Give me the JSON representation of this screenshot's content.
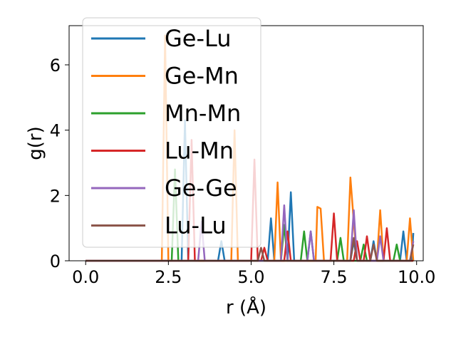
{
  "chart_data": {
    "type": "line",
    "xlabel": "r (Å)",
    "ylabel": "g(r)",
    "xlim": [
      -0.5,
      10.2
    ],
    "ylim": [
      0,
      7.2
    ],
    "xticks": [
      0.0,
      2.5,
      5.0,
      7.5,
      10.0
    ],
    "xtick_labels": [
      "0.0",
      "2.5",
      "5.0",
      "7.5",
      "10.0"
    ],
    "yticks": [
      0,
      2,
      4,
      6
    ],
    "ytick_labels": [
      "0",
      "2",
      "4",
      "6"
    ],
    "grid": false,
    "legend_position": "upper-left",
    "series": [
      {
        "name": "Ge-Lu",
        "color": "#1f77b4",
        "points": [
          [
            0,
            0
          ],
          [
            2.9,
            0
          ],
          [
            3.0,
            4.3
          ],
          [
            3.1,
            0
          ],
          [
            4.0,
            0
          ],
          [
            4.1,
            0.6
          ],
          [
            4.2,
            0
          ],
          [
            5.5,
            0
          ],
          [
            5.6,
            1.3
          ],
          [
            5.7,
            0
          ],
          [
            6.1,
            0
          ],
          [
            6.2,
            2.1
          ],
          [
            6.3,
            0
          ],
          [
            6.7,
            0
          ],
          [
            6.8,
            0.9
          ],
          [
            6.9,
            0
          ],
          [
            8.0,
            0
          ],
          [
            8.1,
            0.6
          ],
          [
            8.2,
            0
          ],
          [
            8.6,
            0
          ],
          [
            8.7,
            0.6
          ],
          [
            8.8,
            0
          ],
          [
            9.5,
            0
          ],
          [
            9.6,
            0.9
          ],
          [
            9.7,
            0
          ],
          [
            9.85,
            0
          ],
          [
            9.9,
            0.85
          ]
        ]
      },
      {
        "name": "Ge-Mn",
        "color": "#ff7f0e",
        "points": [
          [
            0,
            0
          ],
          [
            2.3,
            0
          ],
          [
            2.4,
            6.9
          ],
          [
            2.5,
            0
          ],
          [
            4.4,
            0
          ],
          [
            4.5,
            4.0
          ],
          [
            4.6,
            0
          ],
          [
            5.7,
            0
          ],
          [
            5.8,
            2.4
          ],
          [
            5.9,
            0
          ],
          [
            6.95,
            0
          ],
          [
            7.0,
            1.65
          ],
          [
            7.1,
            1.6
          ],
          [
            7.2,
            0
          ],
          [
            7.9,
            0
          ],
          [
            8.0,
            2.55
          ],
          [
            8.1,
            1.2
          ],
          [
            8.2,
            0
          ],
          [
            8.8,
            0
          ],
          [
            8.9,
            1.55
          ],
          [
            9.0,
            0
          ],
          [
            9.7,
            0
          ],
          [
            9.8,
            1.3
          ],
          [
            9.9,
            0
          ]
        ]
      },
      {
        "name": "Mn-Mn",
        "color": "#2ca02c",
        "points": [
          [
            0,
            0
          ],
          [
            2.6,
            0
          ],
          [
            2.7,
            2.8
          ],
          [
            2.8,
            0
          ],
          [
            5.9,
            0
          ],
          [
            6.0,
            1.1
          ],
          [
            6.1,
            0
          ],
          [
            6.5,
            0
          ],
          [
            6.6,
            0.9
          ],
          [
            6.7,
            0
          ],
          [
            7.6,
            0
          ],
          [
            7.7,
            0.7
          ],
          [
            7.8,
            0
          ],
          [
            8.3,
            0
          ],
          [
            8.4,
            0.5
          ],
          [
            8.5,
            0
          ],
          [
            9.3,
            0
          ],
          [
            9.4,
            0.5
          ],
          [
            9.5,
            0
          ],
          [
            9.9,
            0
          ]
        ]
      },
      {
        "name": "Lu-Mn",
        "color": "#d62728",
        "points": [
          [
            0,
            0
          ],
          [
            3.1,
            0
          ],
          [
            3.2,
            3.7
          ],
          [
            3.3,
            0
          ],
          [
            5.0,
            0
          ],
          [
            5.1,
            3.1
          ],
          [
            5.2,
            0
          ],
          [
            5.3,
            0
          ],
          [
            5.4,
            0.4
          ],
          [
            5.5,
            0
          ],
          [
            6.0,
            0
          ],
          [
            6.1,
            0.9
          ],
          [
            6.2,
            0
          ],
          [
            7.4,
            0
          ],
          [
            7.5,
            1.45
          ],
          [
            7.6,
            0
          ],
          [
            8.1,
            0
          ],
          [
            8.2,
            0.6
          ],
          [
            8.3,
            0
          ],
          [
            8.4,
            0
          ],
          [
            8.5,
            0.75
          ],
          [
            8.6,
            0
          ],
          [
            9.0,
            0
          ],
          [
            9.1,
            1.0
          ],
          [
            9.2,
            0
          ],
          [
            9.9,
            0
          ]
        ]
      },
      {
        "name": "Ge-Ge",
        "color": "#9467bd",
        "points": [
          [
            0,
            0
          ],
          [
            3.4,
            0
          ],
          [
            3.5,
            1.2
          ],
          [
            3.6,
            0
          ],
          [
            5.9,
            0
          ],
          [
            6.0,
            1.7
          ],
          [
            6.1,
            0
          ],
          [
            6.7,
            0
          ],
          [
            6.8,
            0.9
          ],
          [
            6.9,
            0
          ],
          [
            8.0,
            0
          ],
          [
            8.1,
            1.55
          ],
          [
            8.2,
            0
          ],
          [
            8.8,
            0
          ],
          [
            8.9,
            0.75
          ],
          [
            9.0,
            0
          ],
          [
            9.8,
            0
          ],
          [
            9.9,
            0.6
          ]
        ]
      },
      {
        "name": "Lu-Lu",
        "color": "#8c564b",
        "points": [
          [
            0,
            0
          ],
          [
            5.2,
            0
          ],
          [
            5.3,
            0.4
          ],
          [
            5.4,
            0
          ],
          [
            8.0,
            0
          ],
          [
            8.1,
            0.7
          ],
          [
            8.2,
            0
          ],
          [
            8.6,
            0
          ],
          [
            8.7,
            0.5
          ],
          [
            8.8,
            0
          ],
          [
            9.8,
            0
          ],
          [
            9.9,
            0.5
          ]
        ]
      }
    ]
  }
}
